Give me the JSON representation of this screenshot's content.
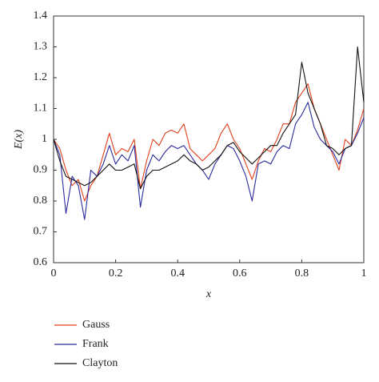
{
  "chart_data": {
    "type": "line",
    "x_label": "x",
    "y_label": "E(x)",
    "x": [
      0,
      0.02,
      0.04,
      0.06,
      0.08,
      0.1,
      0.12,
      0.14,
      0.16,
      0.18,
      0.2,
      0.22,
      0.24,
      0.26,
      0.28,
      0.3,
      0.32,
      0.34,
      0.36,
      0.38,
      0.4,
      0.42,
      0.44,
      0.46,
      0.48,
      0.5,
      0.52,
      0.54,
      0.56,
      0.58,
      0.6,
      0.62,
      0.64,
      0.66,
      0.68,
      0.7,
      0.72,
      0.74,
      0.76,
      0.78,
      0.8,
      0.82,
      0.84,
      0.86,
      0.88,
      0.9,
      0.92,
      0.94,
      0.96,
      0.98,
      1
    ],
    "series": [
      {
        "name": "Gauss",
        "color": "#e0401a",
        "values": [
          1.0,
          0.97,
          0.9,
          0.85,
          0.87,
          0.8,
          0.85,
          0.88,
          0.95,
          1.02,
          0.95,
          0.97,
          0.96,
          1.0,
          0.84,
          0.93,
          1.0,
          0.98,
          1.02,
          1.03,
          1.02,
          1.05,
          0.97,
          0.95,
          0.93,
          0.95,
          0.97,
          1.02,
          1.05,
          1.0,
          0.97,
          0.92,
          0.87,
          0.93,
          0.97,
          0.96,
          1.0,
          1.05,
          1.05,
          1.12,
          1.15,
          1.18,
          1.1,
          1.05,
          1.0,
          0.95,
          0.9,
          1.0,
          0.98,
          1.03,
          1.1
        ]
      },
      {
        "name": "Frank",
        "color": "#2a2a9e",
        "values": [
          1.0,
          0.95,
          0.76,
          0.88,
          0.85,
          0.74,
          0.9,
          0.88,
          0.92,
          0.98,
          0.92,
          0.95,
          0.93,
          0.98,
          0.78,
          0.9,
          0.95,
          0.93,
          0.96,
          0.98,
          0.97,
          0.98,
          0.95,
          0.92,
          0.9,
          0.87,
          0.92,
          0.95,
          0.98,
          0.97,
          0.93,
          0.88,
          0.8,
          0.92,
          0.93,
          0.92,
          0.96,
          0.98,
          0.97,
          1.05,
          1.08,
          1.12,
          1.04,
          1.0,
          0.98,
          0.96,
          0.92,
          0.97,
          0.98,
          1.02,
          1.07
        ]
      },
      {
        "name": "Clayton",
        "color": "#111111",
        "values": [
          1.0,
          0.93,
          0.88,
          0.87,
          0.86,
          0.85,
          0.86,
          0.88,
          0.9,
          0.92,
          0.9,
          0.9,
          0.91,
          0.92,
          0.84,
          0.88,
          0.9,
          0.9,
          0.91,
          0.92,
          0.93,
          0.95,
          0.93,
          0.92,
          0.9,
          0.91,
          0.93,
          0.95,
          0.98,
          0.99,
          0.96,
          0.94,
          0.92,
          0.94,
          0.96,
          0.98,
          0.98,
          1.02,
          1.05,
          1.08,
          1.25,
          1.15,
          1.1,
          1.05,
          0.98,
          0.97,
          0.95,
          0.97,
          0.98,
          1.3,
          1.12
        ]
      }
    ],
    "xlim": [
      0,
      1
    ],
    "xticks": [
      0,
      0.2,
      0.4,
      0.6,
      0.8,
      1
    ],
    "ylim": [
      0.6,
      1.4
    ],
    "yticks": [
      0.6,
      0.7,
      0.8,
      0.9,
      1,
      1.1,
      1.2,
      1.3,
      1.4
    ]
  }
}
